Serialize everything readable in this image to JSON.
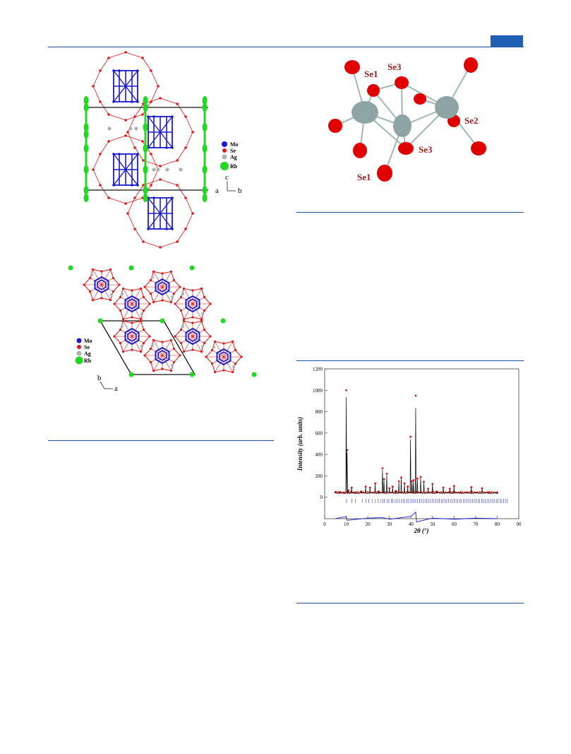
{
  "page": {
    "accent_color": "#1f4e9a",
    "tab_color": "#1f5fb4"
  },
  "figure_a": {
    "legend": [
      "Mo",
      "Se",
      "Ag",
      "Rb"
    ],
    "legend_colors": [
      "#1a1ad0",
      "#e01818",
      "#a8b4b4",
      "#22d822"
    ],
    "axis_labels": {
      "vertical": "c",
      "left": "a",
      "right": "b"
    }
  },
  "figure_b": {
    "legend": [
      "Mo",
      "Se",
      "Ag",
      "Rb"
    ],
    "axis_labels": {
      "up": "b",
      "right": "a"
    }
  },
  "figure_c": {
    "atom_labels": [
      "Se1",
      "Se3",
      "Se2",
      "Se3",
      "Se1"
    ],
    "colors": {
      "selenium": "#e00000",
      "silver": "#8fa5a5",
      "bond": "#9fb7b7",
      "label": "#9b1c1c"
    }
  },
  "chart_data": {
    "type": "line",
    "xlabel": "2θ (°)",
    "ylabel": "Intensity (arb. units)",
    "xlim": [
      0,
      90
    ],
    "ylim": [
      -200,
      1200
    ],
    "x_ticks": [
      "0",
      "10",
      "20",
      "30",
      "40",
      "50",
      "60",
      "70",
      "80",
      "90"
    ],
    "y_ticks": [
      "1200",
      "1000",
      "800",
      "600",
      "400",
      "200",
      "0"
    ],
    "grid": false,
    "series": [
      {
        "style": "observed-points",
        "color": "#e01818",
        "x": [
          5,
          7,
          9,
          10,
          10.4,
          11,
          12.5,
          14,
          17,
          19,
          21,
          23.4,
          25,
          26.8,
          27.5,
          28.8,
          30,
          31.5,
          33,
          34.4,
          35.5,
          37,
          38.5,
          39.8,
          40.5,
          41.2,
          42.2,
          43,
          44.5,
          46,
          48,
          50,
          52,
          55,
          58,
          60,
          63,
          66,
          68,
          70,
          73,
          76,
          80
        ],
        "values": [
          50,
          45,
          40,
          1000,
          440,
          65,
          90,
          40,
          55,
          100,
          90,
          130,
          55,
          270,
          170,
          220,
          85,
          100,
          60,
          150,
          185,
          130,
          100,
          565,
          150,
          160,
          950,
          175,
          190,
          145,
          80,
          125,
          55,
          90,
          80,
          105,
          45,
          45,
          95,
          45,
          85,
          45,
          40
        ]
      },
      {
        "style": "calculated-line",
        "color": "#000000",
        "x": [
          5,
          7,
          9,
          10,
          10.4,
          11,
          12.5,
          14,
          17,
          19,
          21,
          23.4,
          25,
          26.8,
          27.5,
          28.8,
          30,
          31.5,
          33,
          34.4,
          35.5,
          37,
          38.5,
          39.8,
          40.5,
          41.2,
          42.2,
          43,
          44.5,
          46,
          48,
          50,
          52,
          55,
          58,
          60,
          63,
          66,
          68,
          70,
          73,
          76,
          80
        ],
        "values": [
          48,
          44,
          40,
          935,
          420,
          62,
          88,
          40,
          52,
          95,
          85,
          125,
          52,
          255,
          160,
          210,
          80,
          95,
          58,
          140,
          175,
          125,
          95,
          540,
          140,
          150,
          835,
          165,
          180,
          140,
          75,
          120,
          52,
          85,
          75,
          100,
          42,
          42,
          90,
          42,
          80,
          42,
          38
        ]
      },
      {
        "style": "bragg-ticks",
        "color": "#3a3ad8",
        "x": [
          10.1,
          12.6,
          14.3,
          17.5,
          19.2,
          20.4,
          22.1,
          23.5,
          24.7,
          25.9,
          26.9,
          27.6,
          28.9,
          29.8,
          30.9,
          31.6,
          32.7,
          33.5,
          34.5,
          35.6,
          36.4,
          37.2,
          38.1,
          38.9,
          39.9,
          40.6,
          41.3,
          42.2,
          43.1,
          44.0,
          44.8,
          45.6,
          46.5,
          47.3,
          48.1,
          49.0,
          49.8,
          50.7,
          51.5,
          52.4,
          53.2,
          54.1,
          54.9,
          55.8,
          56.6,
          57.5,
          58.3,
          59.2,
          60.0,
          60.9,
          61.7,
          62.6,
          63.4,
          64.3,
          65.1,
          66.0,
          66.8,
          67.7,
          68.5,
          69.4,
          70.2,
          71.1,
          71.9,
          72.8,
          73.6,
          74.5,
          75.3,
          76.2,
          77.0,
          77.9,
          78.7,
          79.6,
          80.4,
          81.3,
          82.1,
          83.0,
          83.8,
          84.7
        ]
      },
      {
        "style": "difference-line",
        "color": "#1a1ad0",
        "offset": -200,
        "x": [
          5,
          10,
          10.4,
          20,
          26.8,
          30,
          39.8,
          42.2,
          42.6,
          50,
          60,
          70,
          80
        ],
        "values": [
          0,
          20,
          -15,
          5,
          10,
          -5,
          20,
          60,
          -30,
          5,
          -5,
          5,
          0
        ]
      }
    ]
  }
}
